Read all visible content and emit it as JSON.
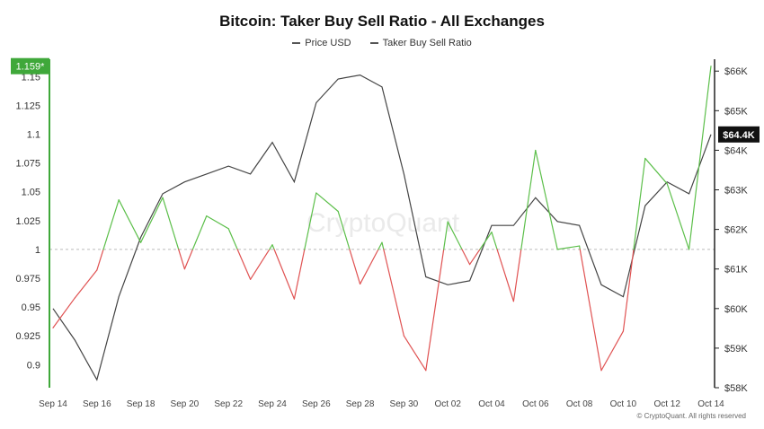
{
  "header": {
    "title": "Bitcoin: Taker Buy Sell Ratio - All Exchanges"
  },
  "legend": [
    {
      "label": "Price USD",
      "color": "#555555"
    },
    {
      "label": "Taker Buy Sell Ratio",
      "color": "#555555"
    }
  ],
  "watermark": "CryptoQuant",
  "footer": "© CryptoQuant. All rights reserved",
  "colors": {
    "price": "#444444",
    "ratio_up": "#5cbf4a",
    "ratio_down": "#e05252",
    "left_axis": "#3fa83a",
    "badge_left": "#3fa83a",
    "badge_right": "#111111"
  },
  "chart_data": {
    "type": "line",
    "title": "Bitcoin: Taker Buy Sell Ratio - All Exchanges",
    "x": [
      "Sep 14",
      "Sep 15",
      "Sep 16",
      "Sep 17",
      "Sep 18",
      "Sep 19",
      "Sep 20",
      "Sep 21",
      "Sep 22",
      "Sep 23",
      "Sep 24",
      "Sep 25",
      "Sep 26",
      "Sep 27",
      "Sep 28",
      "Sep 29",
      "Sep 30",
      "Oct 01",
      "Oct 02",
      "Oct 03",
      "Oct 04",
      "Oct 05",
      "Oct 06",
      "Oct 07",
      "Oct 08",
      "Oct 09",
      "Oct 10",
      "Oct 11",
      "Oct 12",
      "Oct 13",
      "Oct 14"
    ],
    "x_tick_labels": [
      "Sep 14",
      "Sep 16",
      "Sep 18",
      "Sep 20",
      "Sep 22",
      "Sep 24",
      "Sep 26",
      "Sep 28",
      "Sep 30",
      "Oct 02",
      "Oct 04",
      "Oct 06",
      "Oct 08",
      "Oct 10",
      "Oct 12",
      "Oct 14"
    ],
    "baseline": 1,
    "series": [
      {
        "name": "Taker Buy Sell Ratio",
        "axis": "left",
        "values": [
          0.932,
          0.958,
          0.982,
          1.043,
          1.006,
          1.045,
          0.983,
          1.029,
          1.018,
          0.974,
          1.004,
          0.957,
          1.049,
          1.033,
          0.97,
          1.006,
          0.925,
          0.895,
          1.024,
          0.987,
          1.015,
          0.955,
          1.086,
          1.0,
          1.003,
          0.895,
          0.929,
          1.079,
          1.057,
          1.0,
          1.159
        ]
      },
      {
        "name": "Price USD",
        "axis": "right",
        "values": [
          60000,
          59200,
          58200,
          60300,
          61800,
          62900,
          63200,
          63400,
          63600,
          63400,
          64200,
          63200,
          65200,
          65800,
          65900,
          65600,
          63400,
          60800,
          60600,
          60700,
          62100,
          62100,
          62800,
          62200,
          62100,
          60600,
          60300,
          62600,
          63200,
          62900,
          64400
        ]
      }
    ],
    "left_axis": {
      "ticks": [
        0.9,
        0.925,
        0.95,
        0.975,
        1,
        1.025,
        1.05,
        1.075,
        1.1,
        1.125,
        1.15
      ],
      "tick_labels": [
        "0.9",
        "0.925",
        "0.95",
        "0.975",
        "1",
        "1.025",
        "1.05",
        "1.075",
        "1.1",
        "1.125",
        "1.15"
      ],
      "range": [
        0.88,
        1.165
      ]
    },
    "right_axis": {
      "ticks": [
        58000,
        59000,
        60000,
        61000,
        62000,
        63000,
        64000,
        65000,
        66000
      ],
      "tick_labels": [
        "$58K",
        "$59K",
        "$60K",
        "$61K",
        "$62K",
        "$63K",
        "$64K",
        "$65K",
        "$66K"
      ],
      "range": [
        58000,
        66300
      ]
    },
    "last_value_badges": {
      "left": "1.159*",
      "right": "$64.4K"
    },
    "grid": false,
    "legend_position": "top-center"
  }
}
